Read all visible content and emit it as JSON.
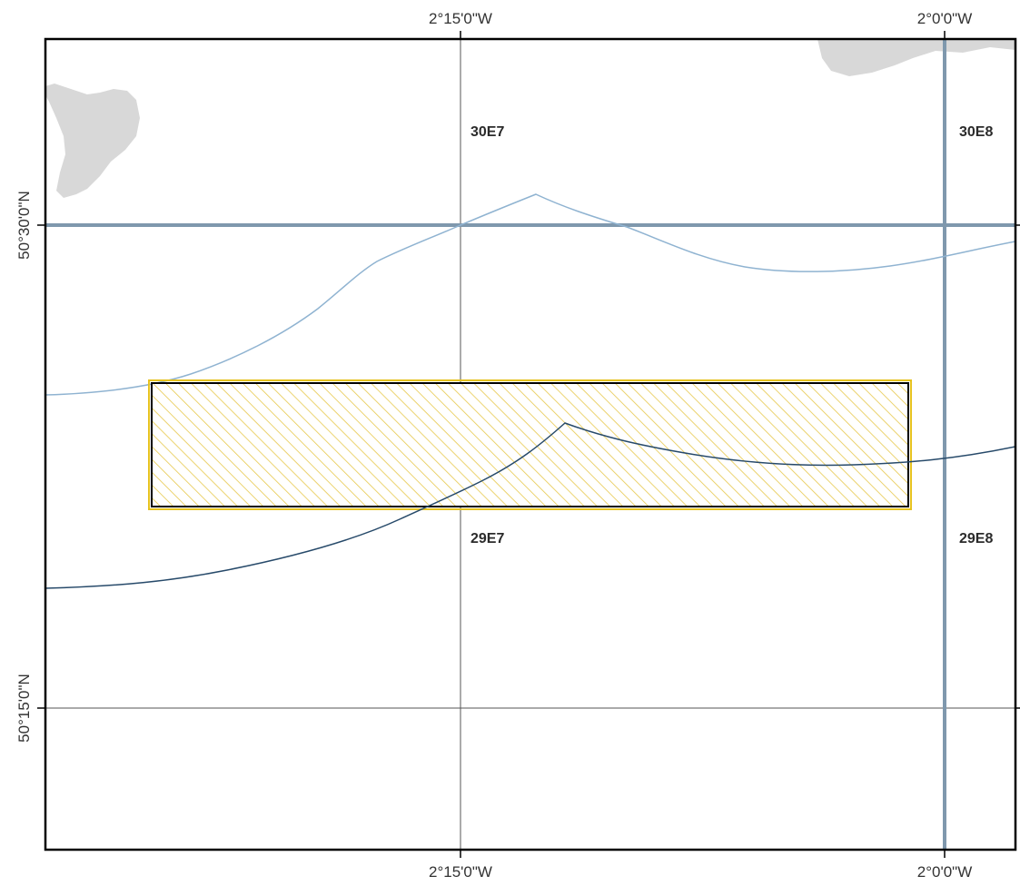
{
  "map": {
    "longitude_labels": [
      "2°15'0\"W",
      "2°0'0\"W"
    ],
    "latitude_labels": [
      "50°30'0\"N",
      "50°15'0\"N"
    ],
    "rectangles": [
      {
        "id": "30E7",
        "label": "30E7"
      },
      {
        "id": "30E8",
        "label": "30E8"
      },
      {
        "id": "29E7",
        "label": "29E7"
      },
      {
        "id": "29E8",
        "label": "29E8"
      }
    ],
    "colors": {
      "land": "#d8d8d8",
      "frame": "#000000",
      "graticule": "#555555",
      "rectangle_boundary": "#7f98ad",
      "contour_light": "#8fb3d1",
      "contour_dark": "#274a6a",
      "highlight_fill": "#f2d36b",
      "highlight_border": "#e6c21e"
    }
  }
}
